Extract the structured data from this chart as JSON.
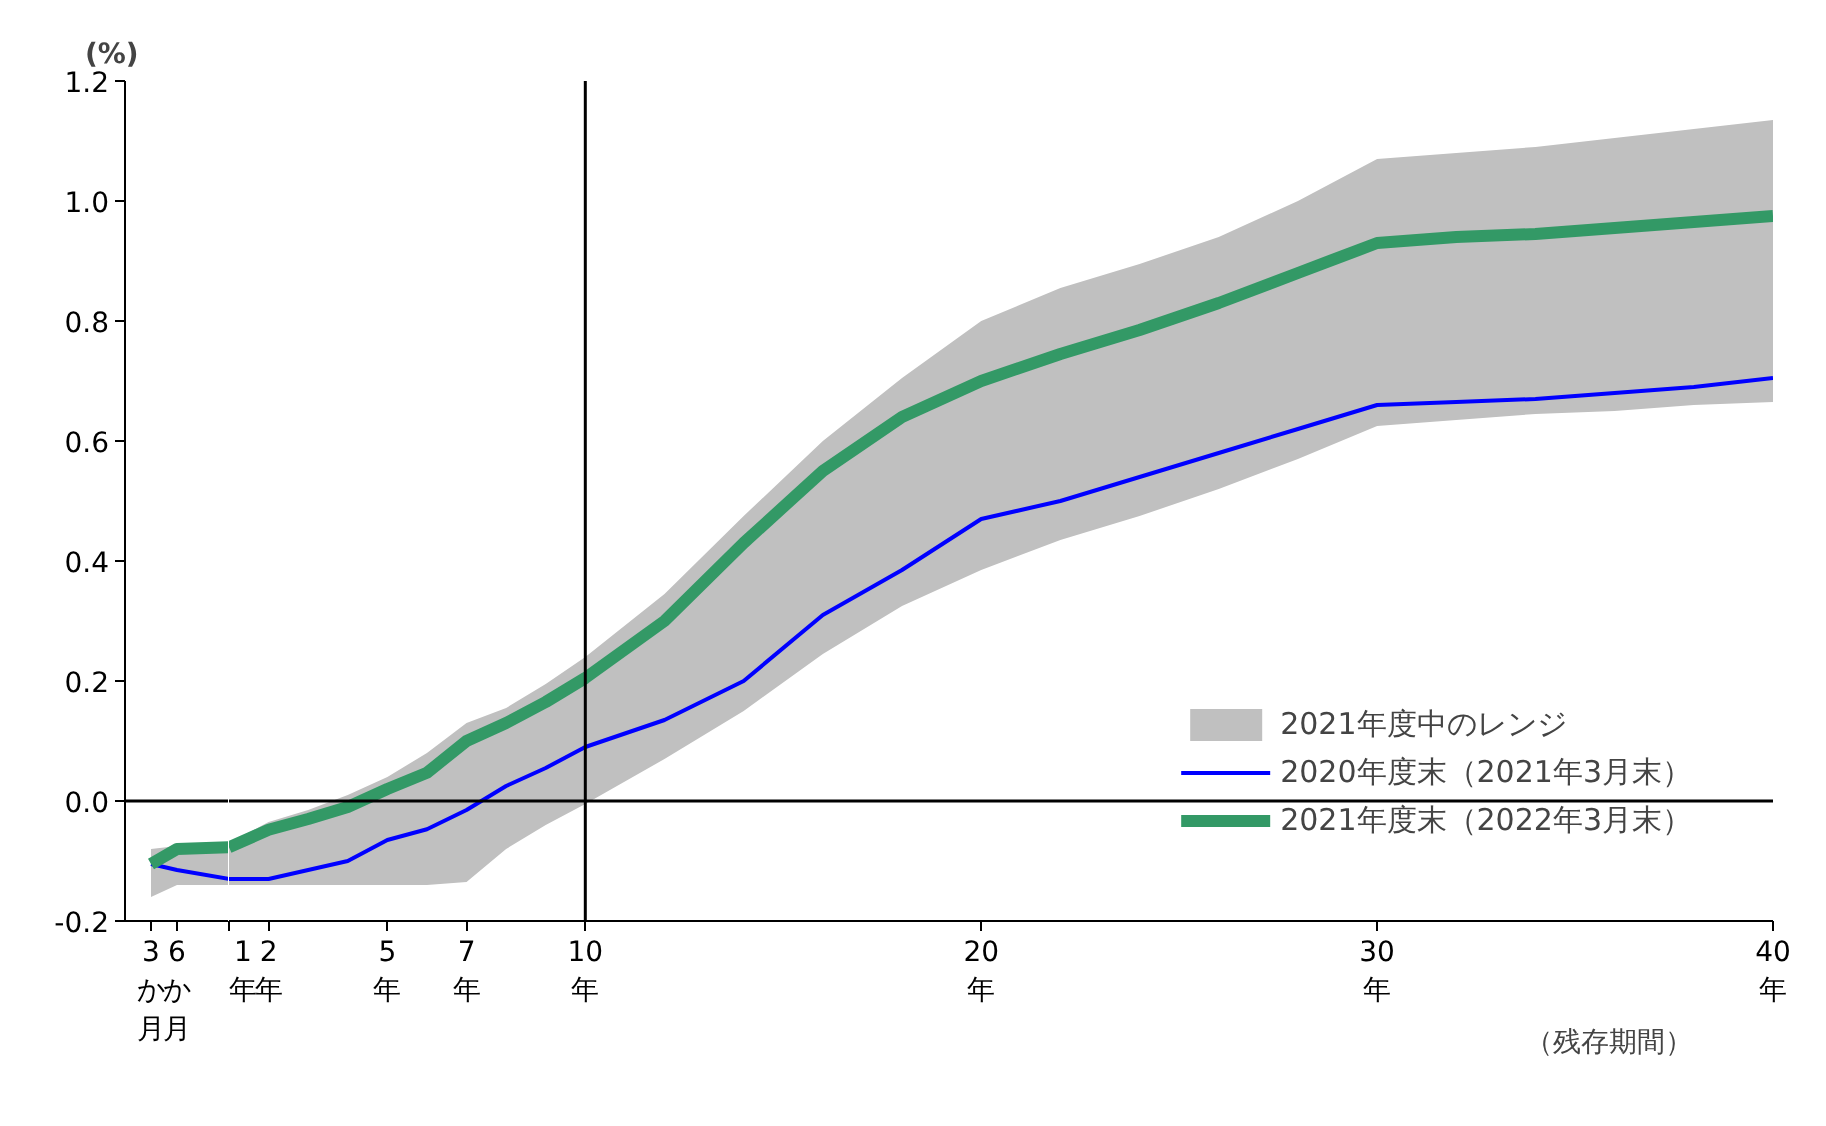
{
  "chart_data": [
    {
      "type": "line",
      "ylabel": "(%)",
      "x": [
        3,
        6,
        12
      ],
      "series": [
        {
          "type": "area",
          "color": "#c0c0c0",
          "values": [
            null,
            null,
            null
          ],
          "lower": [
            -0.16,
            -0.14,
            -0.14
          ],
          "upper": [
            -0.08,
            -0.075,
            -0.07
          ]
        },
        {
          "color": "#0000ff",
          "values": [
            -0.105,
            -0.115,
            -0.13
          ]
        },
        {
          "color": "#339966",
          "values": [
            -0.105,
            -0.08,
            -0.077
          ]
        }
      ],
      "xlim": [
        0,
        12
      ],
      "xticks": [
        {
          "value": 3,
          "label": "3か月"
        },
        {
          "value": 6,
          "label": "6か月"
        }
      ],
      "ylim": [
        -0.2,
        1.2
      ],
      "yticks": [
        {
          "value": -0.2,
          "label": "-0.2"
        },
        {
          "value": 0,
          "label": "0.0"
        },
        {
          "value": 0.2,
          "label": "0.2"
        },
        {
          "value": 0.4,
          "label": "0.4"
        },
        {
          "value": 0.6,
          "label": "0.6"
        },
        {
          "value": 0.8,
          "label": "0.8"
        },
        {
          "value": 1,
          "label": "1.0"
        },
        {
          "value": 1.2,
          "label": "1.2"
        }
      ],
      "ref_lines": [
        {
          "axis": "y",
          "value": 0,
          "color": "#000000"
        }
      ],
      "grid": false,
      "marker": "none",
      "line_style": "solid"
    },
    {
      "type": "line",
      "xlabel": "（残存期間）",
      "x": [
        1,
        2,
        3,
        4,
        5,
        6,
        7,
        8,
        9,
        10,
        12,
        14,
        16,
        18,
        20,
        22,
        24,
        26,
        28,
        30,
        32,
        34,
        36,
        38,
        40
      ],
      "series": [
        {
          "name": "2021年度中のレンジ",
          "type": "area",
          "color": "#c0c0c0",
          "values": [
            null,
            null,
            null,
            null,
            null,
            null,
            null,
            null,
            null,
            null,
            null,
            null,
            null,
            null,
            null,
            null,
            null,
            null,
            null,
            null,
            null,
            null,
            null,
            null,
            null
          ],
          "lower": [
            -0.14,
            -0.14,
            -0.14,
            -0.14,
            -0.14,
            -0.14,
            -0.135,
            -0.08,
            -0.04,
            -0.005,
            0.07,
            0.15,
            0.245,
            0.325,
            0.385,
            0.435,
            0.475,
            0.52,
            0.57,
            0.625,
            0.635,
            0.645,
            0.65,
            0.66,
            0.665
          ],
          "upper": [
            -0.07,
            -0.035,
            -0.015,
            0.01,
            0.04,
            0.08,
            0.13,
            0.155,
            0.195,
            0.24,
            0.345,
            0.475,
            0.6,
            0.705,
            0.8,
            0.855,
            0.895,
            0.94,
            1.0,
            1.07,
            1.08,
            1.09,
            1.105,
            1.12,
            1.135
          ]
        },
        {
          "name": "2020年度末（2021年3月末）",
          "color": "#0000ff",
          "values": [
            -0.13,
            -0.13,
            -0.115,
            -0.1,
            -0.065,
            -0.047,
            -0.015,
            0.025,
            0.055,
            0.09,
            0.135,
            0.2,
            0.31,
            0.385,
            0.47,
            0.5,
            0.54,
            0.58,
            0.62,
            0.66,
            0.665,
            0.67,
            0.68,
            0.69,
            0.705
          ]
        },
        {
          "name": "2021年度末（2022年3月末）",
          "color": "#339966",
          "values": [
            -0.077,
            -0.048,
            -0.03,
            -0.01,
            0.02,
            0.047,
            0.1,
            0.13,
            0.165,
            0.205,
            0.3,
            0.43,
            0.55,
            0.64,
            0.7,
            0.745,
            0.785,
            0.83,
            0.88,
            0.93,
            0.94,
            0.945,
            0.955,
            0.965,
            0.975
          ]
        }
      ],
      "xlim": [
        1,
        40
      ],
      "xticks": [
        {
          "value": 1,
          "label": "1年"
        },
        {
          "value": 2,
          "label": "2年"
        },
        {
          "value": 5,
          "label": "5年"
        },
        {
          "value": 7,
          "label": "7年"
        },
        {
          "value": 10,
          "label": "10年"
        },
        {
          "value": 20,
          "label": "20年"
        },
        {
          "value": 30,
          "label": "30年"
        },
        {
          "value": 40,
          "label": "40年"
        }
      ],
      "ylim": [
        -0.2,
        1.2
      ],
      "ref_lines": [
        {
          "axis": "x",
          "value": 10,
          "color": "#000000"
        },
        {
          "axis": "y",
          "value": 0,
          "color": "#000000"
        }
      ],
      "tick_labels": "x",
      "grid": false,
      "legend": "bottom right",
      "marker": "none",
      "line_style": "solid"
    }
  ]
}
